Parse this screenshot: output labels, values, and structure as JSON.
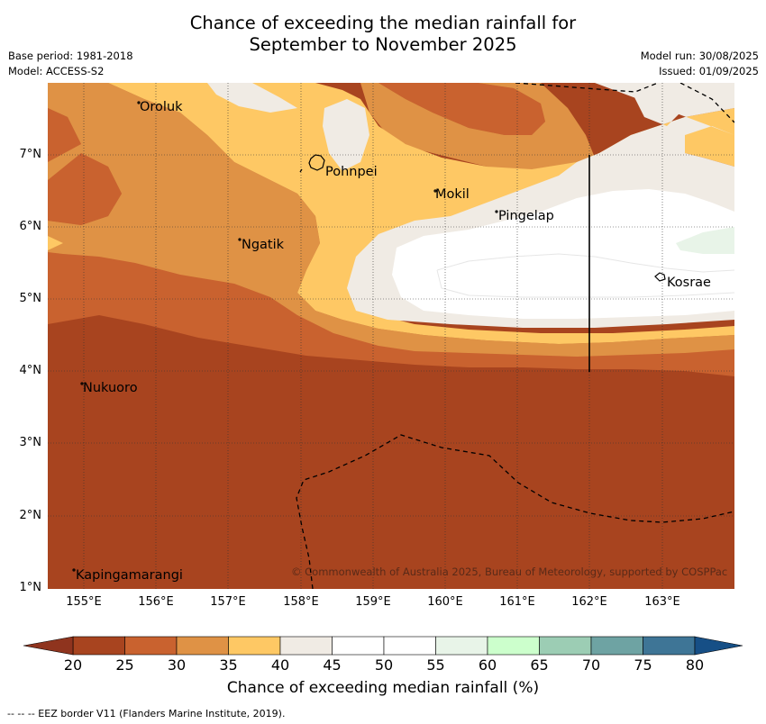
{
  "title_line1": "Chance of exceeding the median rainfall for",
  "title_line2": "September to November 2025",
  "base_period": "Base period: 1981-2018",
  "model": "Model: ACCESS-S2",
  "model_run": "Model run: 30/08/2025",
  "issued": "Issued: 01/09/2025",
  "longitude_labels": [
    "155°E",
    "156°E",
    "157°E",
    "158°E",
    "159°E",
    "160°E",
    "161°E",
    "162°E",
    "163°E"
  ],
  "latitude_labels": [
    "7°N",
    "6°N",
    "5°N",
    "4°N",
    "3°N",
    "2°N",
    "1°N"
  ],
  "places": [
    "Oroluk",
    "Pohnpei",
    "Mokil",
    "Pingelap",
    "Ngatik",
    "Kosrae",
    "Nukuoro",
    "Kapingamarangi"
  ],
  "copyright": "© Commonwealth of Australia 2025, Bureau of Meteorology, supported by COSPPac",
  "colorbar": {
    "ticks": [
      "20",
      "25",
      "30",
      "35",
      "40",
      "45",
      "50",
      "55",
      "60",
      "65",
      "70",
      "75",
      "80"
    ],
    "colors": [
      "#a8441f",
      "#c9622f",
      "#df9245",
      "#fec864",
      "#f0ebe4",
      "#ffffff",
      "#ffffff",
      "#e8f4e8",
      "#ccffcc",
      "#9ccdb4",
      "#6ea3a3",
      "#3e7596"
    ],
    "under_color": "#8f341e",
    "over_color": "#164f86",
    "label": "Chance of exceeding median rainfall (%)"
  },
  "footer": "--  --  -- EEZ border V11 (Flanders Marine Institute, 2019)."
}
